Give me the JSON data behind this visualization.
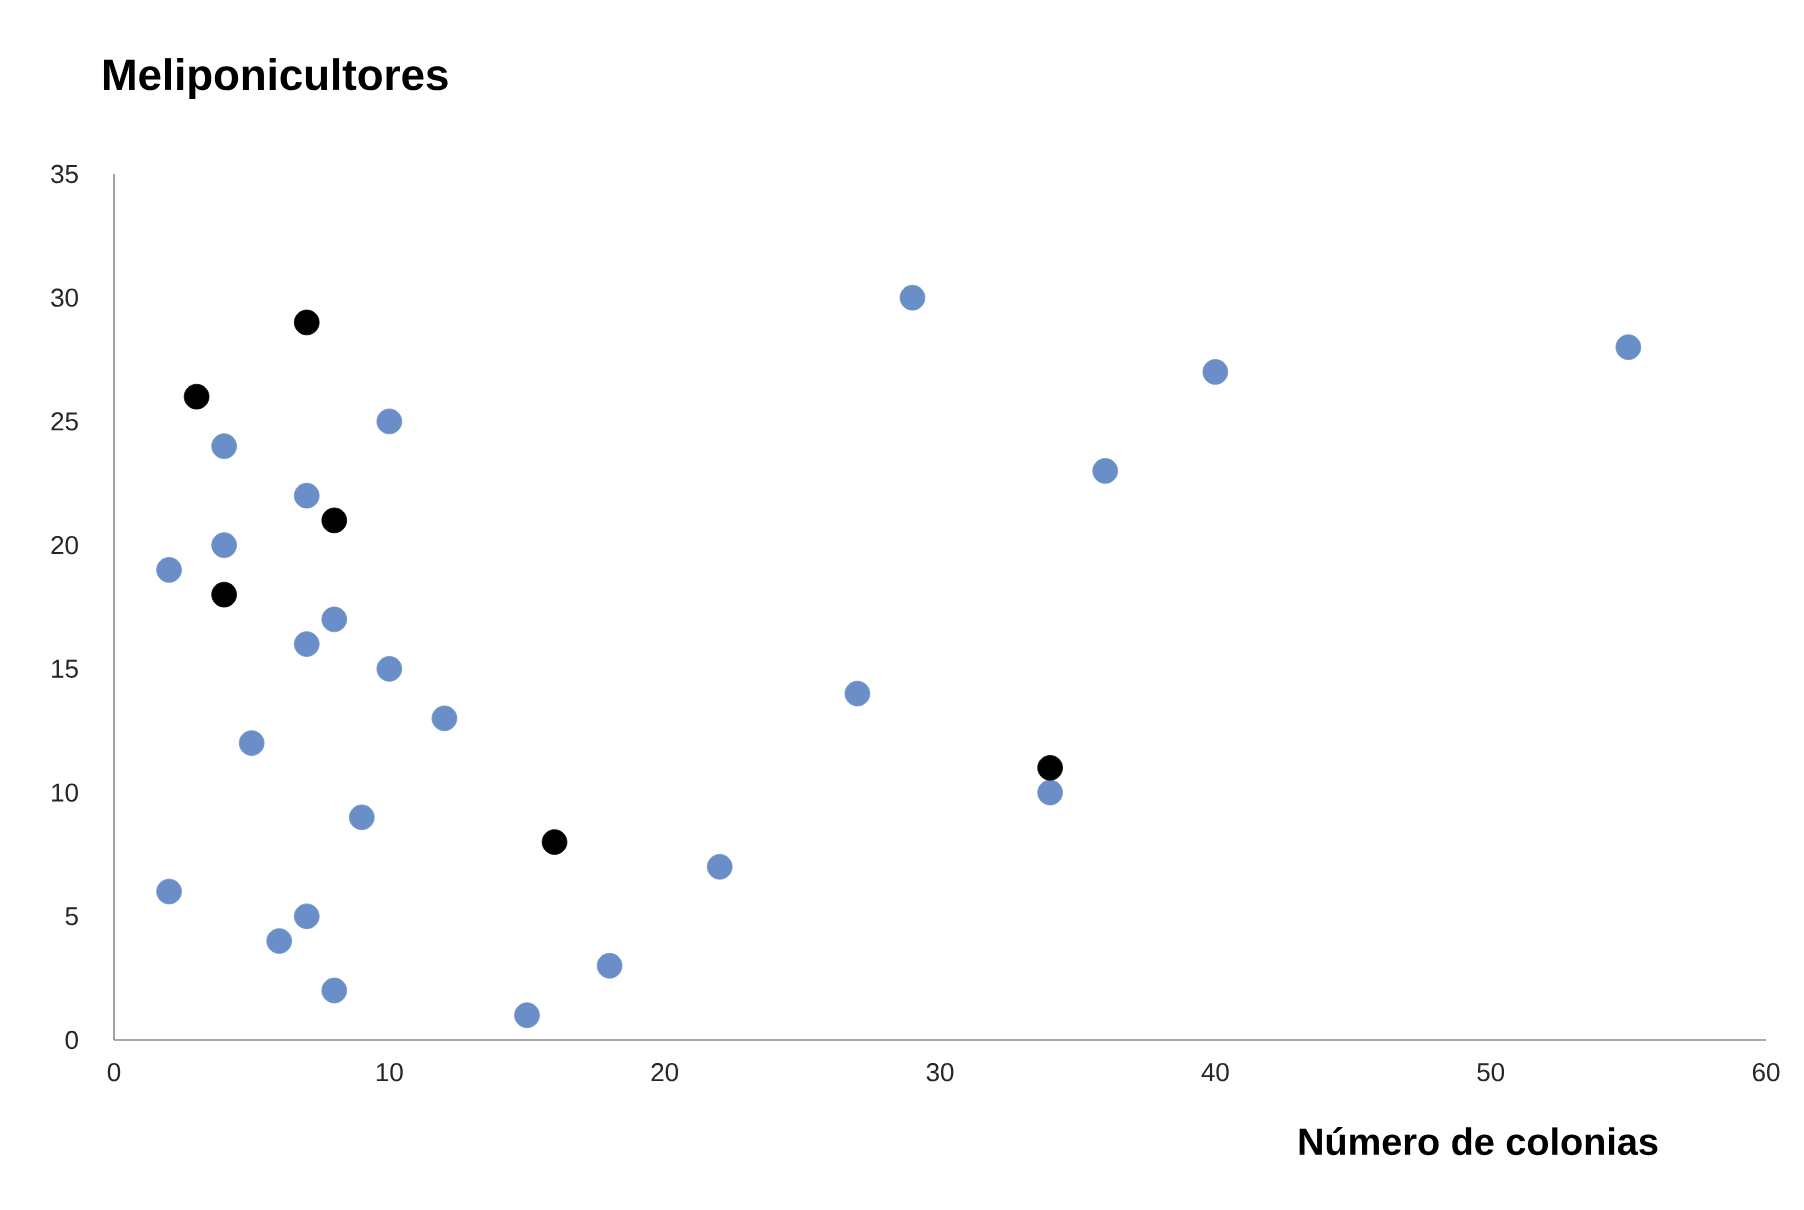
{
  "chart_data": {
    "type": "scatter",
    "title": "Meliponicultores",
    "xlabel": "Número de colonias",
    "marker": "circle",
    "grid": false,
    "legend": false,
    "xlim": [
      0,
      60
    ],
    "xticks": [
      0,
      10,
      20,
      30,
      40,
      50,
      60
    ],
    "ylim": [
      0,
      35
    ],
    "yticks": [
      0,
      5,
      10,
      15,
      20,
      25,
      30,
      35
    ],
    "series": [
      {
        "color": "#6a8fc8",
        "x": [
          2,
          4,
          4,
          7,
          10,
          8,
          7,
          10,
          12,
          5,
          9,
          2,
          7,
          6,
          8,
          15,
          18,
          22,
          27,
          29,
          34,
          36,
          40,
          55
        ],
        "values": [
          19,
          24,
          20,
          22,
          25,
          17,
          16,
          15,
          13,
          12,
          9,
          6,
          5,
          4,
          2,
          1,
          3,
          7,
          14,
          30,
          10,
          23,
          27,
          28
        ]
      },
      {
        "color": "#000000",
        "x": [
          3,
          7,
          8,
          4,
          16,
          34
        ],
        "values": [
          26,
          29,
          21,
          18,
          8,
          11
        ]
      }
    ]
  }
}
